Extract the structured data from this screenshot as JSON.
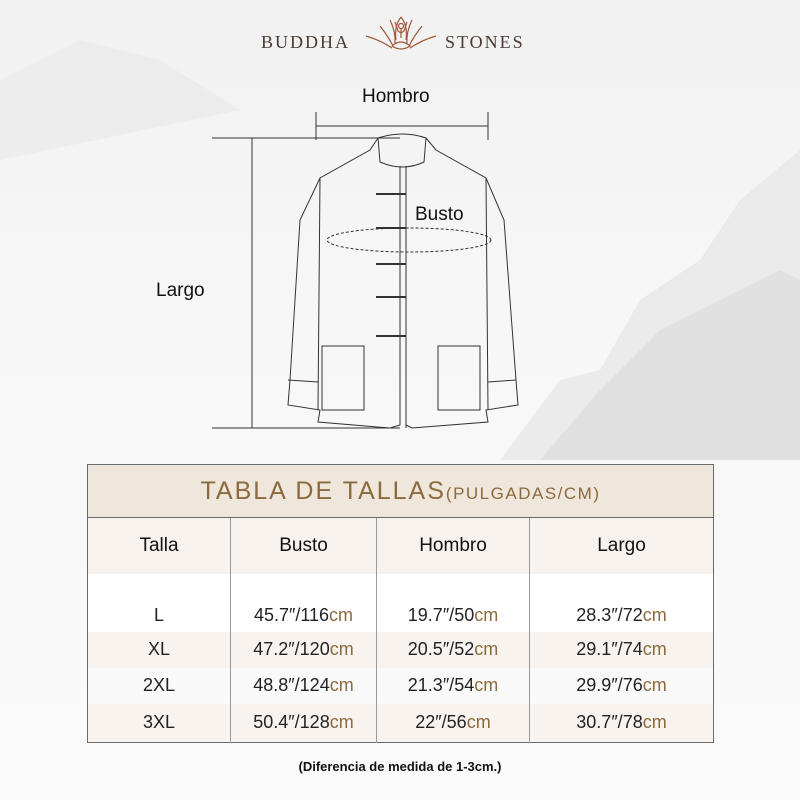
{
  "brand": {
    "left": "BUDDHA",
    "right": "STONES",
    "logo_icon": "lotus-meditation-icon",
    "accent_color": "#8b6a3e"
  },
  "diagram": {
    "shoulder": "Hombro",
    "bust": "Busto",
    "length": "Largo"
  },
  "table": {
    "title": "TABLA DE TALLAS",
    "title_units": "(PULGADAS/CM)",
    "headers": [
      "Talla",
      "Busto",
      "Hombro",
      "Largo"
    ],
    "rows": [
      {
        "size": "L",
        "busto": "45.7″/116",
        "hombro": "19.7″/50",
        "largo": "28.3″/72"
      },
      {
        "size": "XL",
        "busto": "47.2″/120",
        "hombro": "20.5″/52",
        "largo": "29.1″/74"
      },
      {
        "size": "2XL",
        "busto": "48.8″/124",
        "hombro": "21.3″/54",
        "largo": "29.9″/76"
      },
      {
        "size": "3XL",
        "busto": "50.4″/128",
        "hombro": "22″/56",
        "largo": "30.7″/78"
      }
    ],
    "unit": "cm"
  },
  "note": "(Diferencia de medida de 1-3cm.)"
}
